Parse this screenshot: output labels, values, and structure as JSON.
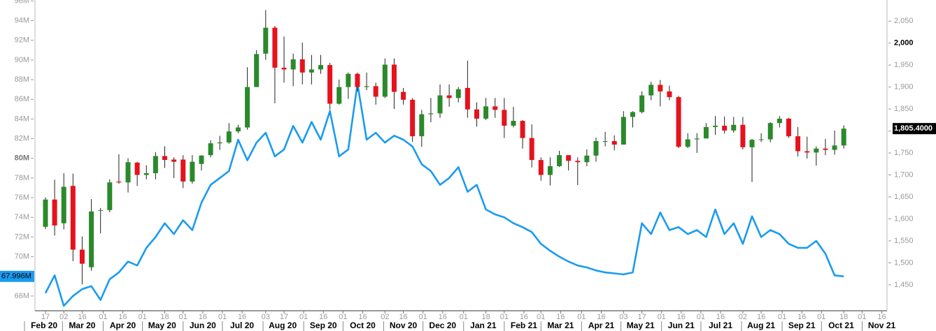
{
  "chart_data": {
    "type": "candlestick",
    "x": [
      "2020-02-17",
      "2020-02-24",
      "2020-03-02",
      "2020-03-09",
      "2020-03-16",
      "2020-03-23",
      "2020-03-30",
      "2020-04-06",
      "2020-04-13",
      "2020-04-20",
      "2020-04-27",
      "2020-05-04",
      "2020-05-11",
      "2020-05-18",
      "2020-05-25",
      "2020-06-01",
      "2020-06-08",
      "2020-06-15",
      "2020-06-22",
      "2020-06-29",
      "2020-07-06",
      "2020-07-13",
      "2020-07-20",
      "2020-07-27",
      "2020-08-03",
      "2020-08-10",
      "2020-08-17",
      "2020-08-24",
      "2020-08-31",
      "2020-09-07",
      "2020-09-14",
      "2020-09-21",
      "2020-09-28",
      "2020-10-05",
      "2020-10-12",
      "2020-10-19",
      "2020-10-26",
      "2020-11-02",
      "2020-11-09",
      "2020-11-16",
      "2020-11-23",
      "2020-11-30",
      "2020-12-07",
      "2020-12-14",
      "2020-12-21",
      "2020-12-28",
      "2021-01-04",
      "2021-01-11",
      "2021-01-18",
      "2021-01-25",
      "2021-02-01",
      "2021-02-08",
      "2021-02-15",
      "2021-02-22",
      "2021-03-01",
      "2021-03-08",
      "2021-03-15",
      "2021-03-22",
      "2021-03-29",
      "2021-04-05",
      "2021-04-12",
      "2021-04-19",
      "2021-04-26",
      "2021-05-03",
      "2021-05-10",
      "2021-05-17",
      "2021-05-24",
      "2021-05-31",
      "2021-06-07",
      "2021-06-14",
      "2021-06-21",
      "2021-06-28",
      "2021-07-05",
      "2021-07-12",
      "2021-07-19",
      "2021-07-26",
      "2021-08-02",
      "2021-08-09",
      "2021-08-16",
      "2021-08-23",
      "2021-08-30",
      "2021-09-06",
      "2021-09-13",
      "2021-09-20",
      "2021-09-27",
      "2021-10-04",
      "2021-10-11",
      "2021-10-18"
    ],
    "xlim": [
      "2020-02-09",
      "2021-11-20"
    ],
    "xticks": [
      {
        "value": "2020-02-17",
        "label": "17"
      },
      {
        "value": "2020-03-02",
        "label": "02"
      },
      {
        "value": "2020-03-16",
        "label": "16"
      },
      {
        "value": "2020-04-01",
        "label": "01"
      },
      {
        "value": "2020-04-16",
        "label": "16"
      },
      {
        "value": "2020-05-01",
        "label": "01"
      },
      {
        "value": "2020-05-18",
        "label": "18"
      },
      {
        "value": "2020-06-01",
        "label": "01"
      },
      {
        "value": "2020-06-16",
        "label": "16"
      },
      {
        "value": "2020-07-01",
        "label": "01"
      },
      {
        "value": "2020-07-16",
        "label": "16"
      },
      {
        "value": "2020-08-03",
        "label": "03"
      },
      {
        "value": "2020-08-17",
        "label": "17"
      },
      {
        "value": "2020-09-01",
        "label": "01"
      },
      {
        "value": "2020-09-16",
        "label": "16"
      },
      {
        "value": "2020-10-01",
        "label": "01"
      },
      {
        "value": "2020-10-16",
        "label": "16"
      },
      {
        "value": "2020-11-02",
        "label": "02"
      },
      {
        "value": "2020-11-16",
        "label": "16"
      },
      {
        "value": "2020-12-01",
        "label": "01"
      },
      {
        "value": "2020-12-16",
        "label": "16"
      },
      {
        "value": "2021-01-01",
        "label": "01"
      },
      {
        "value": "2021-01-18",
        "label": "18"
      },
      {
        "value": "2021-02-01",
        "label": "01"
      },
      {
        "value": "2021-02-16",
        "label": "16"
      },
      {
        "value": "2021-03-01",
        "label": "01"
      },
      {
        "value": "2021-03-16",
        "label": "16"
      },
      {
        "value": "2021-04-01",
        "label": "01"
      },
      {
        "value": "2021-04-16",
        "label": "16"
      },
      {
        "value": "2021-05-03",
        "label": "03"
      },
      {
        "value": "2021-05-17",
        "label": "17"
      },
      {
        "value": "2021-06-01",
        "label": "01"
      },
      {
        "value": "2021-06-16",
        "label": "16"
      },
      {
        "value": "2021-07-01",
        "label": "01"
      },
      {
        "value": "2021-07-16",
        "label": "16"
      },
      {
        "value": "2021-08-02",
        "label": "02"
      },
      {
        "value": "2021-08-16",
        "label": "16"
      },
      {
        "value": "2021-09-01",
        "label": "01"
      },
      {
        "value": "2021-09-16",
        "label": "16"
      },
      {
        "value": "2021-10-01",
        "label": "01"
      },
      {
        "value": "2021-10-18",
        "label": "18"
      },
      {
        "value": "2021-11-01",
        "label": "01"
      },
      {
        "value": "2021-11-16",
        "label": "16"
      }
    ],
    "month_labels": [
      {
        "value": "2020-02",
        "label": "Feb 20"
      },
      {
        "value": "2020-03",
        "label": "Mar 20"
      },
      {
        "value": "2020-04",
        "label": "Apr 20"
      },
      {
        "value": "2020-05",
        "label": "May 20"
      },
      {
        "value": "2020-06",
        "label": "Jun 20"
      },
      {
        "value": "2020-07",
        "label": "Jul 20"
      },
      {
        "value": "2020-08",
        "label": "Aug 20"
      },
      {
        "value": "2020-09",
        "label": "Sep 20"
      },
      {
        "value": "2020-10",
        "label": "Oct 20"
      },
      {
        "value": "2020-11",
        "label": "Nov 20"
      },
      {
        "value": "2020-12",
        "label": "Dec 20"
      },
      {
        "value": "2021-01",
        "label": "Jan 21"
      },
      {
        "value": "2021-02",
        "label": "Feb 21"
      },
      {
        "value": "2021-03",
        "label": "Mar 21"
      },
      {
        "value": "2021-04",
        "label": "Apr 21"
      },
      {
        "value": "2021-05",
        "label": "May 21"
      },
      {
        "value": "2021-06",
        "label": "Jun 21"
      },
      {
        "value": "2021-07",
        "label": "Jul 21"
      },
      {
        "value": "2021-08",
        "label": "Aug 21"
      },
      {
        "value": "2021-09",
        "label": "Sep 21"
      },
      {
        "value": "2021-10",
        "label": "Oct 21"
      },
      {
        "value": "2021-11",
        "label": "Nov 21"
      }
    ],
    "ylim": [
      64.5,
      96.1
    ],
    "yticks": [
      {
        "value": 66,
        "label": "66M"
      },
      {
        "value": 68,
        "label": "68M"
      },
      {
        "value": 70,
        "label": "70M"
      },
      {
        "value": 72,
        "label": "72M"
      },
      {
        "value": 74,
        "label": "74M"
      },
      {
        "value": 76,
        "label": "76M"
      },
      {
        "value": 78,
        "label": "78M"
      },
      {
        "value": 80,
        "label": "80M",
        "highlight": true
      },
      {
        "value": 82,
        "label": "82M"
      },
      {
        "value": 84,
        "label": "84M"
      },
      {
        "value": 86,
        "label": "86M"
      },
      {
        "value": 88,
        "label": "88M"
      },
      {
        "value": 90,
        "label": "90M"
      },
      {
        "value": 92,
        "label": "92M"
      },
      {
        "value": 94,
        "label": "94M"
      },
      {
        "value": 96,
        "label": "96M"
      }
    ],
    "y2lim": [
      1391,
      2098
    ],
    "y2ticks": [
      {
        "value": 1450,
        "label": "1,450"
      },
      {
        "value": 1500,
        "label": "1,500"
      },
      {
        "value": 1550,
        "label": "1,550"
      },
      {
        "value": 1600,
        "label": "1,600"
      },
      {
        "value": 1650,
        "label": "1,650"
      },
      {
        "value": 1700,
        "label": "1,700"
      },
      {
        "value": 1750,
        "label": "1,750"
      },
      {
        "value": 1800,
        "label": "1,800"
      },
      {
        "value": 1850,
        "label": "1,850"
      },
      {
        "value": 1900,
        "label": "1,900"
      },
      {
        "value": 1950,
        "label": "1,950"
      },
      {
        "value": 2000,
        "label": "2,000",
        "highlight": true
      },
      {
        "value": 2050,
        "label": "2,050"
      }
    ],
    "series": [
      {
        "type": "line",
        "axis": "y",
        "color": "#1a9bf0",
        "last_value_label": "67.996M",
        "values": [
          66.3,
          68.1,
          65.0,
          66.0,
          66.7,
          67.0,
          65.6,
          67.7,
          68.4,
          69.5,
          69.1,
          70.9,
          72.0,
          73.4,
          72.3,
          73.7,
          72.7,
          75.5,
          77.3,
          78.0,
          78.7,
          81.9,
          79.8,
          81.6,
          82.6,
          80.2,
          80.9,
          83.3,
          81.6,
          83.7,
          81.9,
          84.8,
          80.2,
          80.9,
          87.6,
          81.9,
          82.6,
          81.6,
          82.3,
          81.9,
          81.2,
          79.4,
          78.7,
          77.3,
          78.0,
          79.1,
          76.6,
          77.3,
          74.8,
          74.3,
          74.0,
          73.4,
          73.0,
          72.5,
          71.3,
          70.6,
          70.0,
          69.5,
          69.1,
          68.9,
          68.6,
          68.4,
          68.3,
          68.2,
          68.4,
          73.4,
          72.3,
          74.5,
          72.7,
          73.0,
          72.3,
          72.7,
          72.0,
          74.8,
          72.3,
          73.4,
          71.3,
          74.1,
          72.0,
          72.7,
          72.3,
          71.3,
          70.9,
          70.9,
          71.6,
          70.3,
          68.1,
          67.996
        ]
      },
      {
        "type": "candlestick",
        "axis": "y2",
        "up_color": "#2a8a2a",
        "down_color": "#e6121c",
        "last_value_label": "1,805.4000",
        "open": [
          1582,
          1644,
          1590,
          1675,
          1530,
          1490,
          1620,
          1620,
          1685,
          1683,
          1728,
          1700,
          1704,
          1743,
          1735,
          1735,
          1685,
          1725,
          1745,
          1772,
          1774,
          1799,
          1808,
          1900,
          1976,
          2035,
          1944,
          1940,
          1963,
          1933,
          1940,
          1950,
          1862,
          1900,
          1930,
          1900,
          1902,
          1878,
          1951,
          1889,
          1871,
          1788,
          1838,
          1840,
          1881,
          1875,
          1898,
          1849,
          1828,
          1856,
          1848,
          1812,
          1823,
          1784,
          1734,
          1700,
          1720,
          1745,
          1732,
          1729,
          1744,
          1777,
          1777,
          1769,
          1832,
          1843,
          1881,
          1905,
          1890,
          1877,
          1764,
          1781,
          1783,
          1809,
          1812,
          1801,
          1814,
          1763,
          1780,
          1781,
          1818,
          1828,
          1788,
          1754,
          1751,
          1760,
          1757,
          1767
        ],
        "high": [
          1649,
          1689,
          1704,
          1703,
          1560,
          1645,
          1625,
          1690,
          1747,
          1738,
          1730,
          1722,
          1752,
          1765,
          1740,
          1745,
          1745,
          1745,
          1779,
          1789,
          1818,
          1814,
          1945,
          1984,
          2075,
          2039,
          2015,
          1976,
          2001,
          1973,
          1973,
          1955,
          1917,
          1933,
          1933,
          1933,
          1910,
          1965,
          1965,
          1898,
          1875,
          1848,
          1875,
          1906,
          1906,
          1900,
          1960,
          1865,
          1875,
          1875,
          1875,
          1855,
          1825,
          1815,
          1740,
          1740,
          1755,
          1745,
          1740,
          1758,
          1785,
          1798,
          1790,
          1845,
          1845,
          1890,
          1912,
          1916,
          1903,
          1880,
          1795,
          1795,
          1818,
          1834,
          1833,
          1832,
          1832,
          1782,
          1795,
          1820,
          1834,
          1830,
          1809,
          1787,
          1765,
          1782,
          1801,
          1813
        ],
        "low": [
          1577,
          1562,
          1576,
          1504,
          1451,
          1482,
          1567,
          1615,
          1680,
          1660,
          1675,
          1690,
          1690,
          1716,
          1693,
          1670,
          1680,
          1710,
          1740,
          1757,
          1771,
          1795,
          1803,
          1900,
          1962,
          1863,
          1910,
          1902,
          1906,
          1906,
          1930,
          1848,
          1860,
          1873,
          1890,
          1893,
          1860,
          1875,
          1850,
          1860,
          1775,
          1764,
          1820,
          1830,
          1855,
          1865,
          1830,
          1810,
          1825,
          1830,
          1784,
          1808,
          1760,
          1717,
          1687,
          1676,
          1718,
          1710,
          1677,
          1720,
          1730,
          1765,
          1756,
          1769,
          1808,
          1840,
          1870,
          1856,
          1870,
          1761,
          1761,
          1750,
          1783,
          1791,
          1794,
          1796,
          1758,
          1684,
          1775,
          1774,
          1808,
          1784,
          1742,
          1737,
          1721,
          1745,
          1746,
          1760
        ],
        "close": [
          1644,
          1585,
          1673,
          1530,
          1498,
          1617,
          1620,
          1683,
          1683,
          1729,
          1700,
          1704,
          1743,
          1734,
          1730,
          1685,
          1730,
          1744,
          1772,
          1774,
          1799,
          1808,
          1900,
          1975,
          2035,
          1944,
          1940,
          1963,
          1933,
          1940,
          1950,
          1862,
          1900,
          1930,
          1900,
          1902,
          1878,
          1951,
          1889,
          1871,
          1788,
          1838,
          1840,
          1881,
          1875,
          1895,
          1849,
          1828,
          1856,
          1848,
          1812,
          1823,
          1784,
          1734,
          1700,
          1720,
          1745,
          1732,
          1729,
          1744,
          1777,
          1777,
          1769,
          1832,
          1843,
          1881,
          1905,
          1890,
          1877,
          1764,
          1781,
          1783,
          1809,
          1812,
          1801,
          1814,
          1763,
          1780,
          1781,
          1818,
          1828,
          1788,
          1754,
          1751,
          1760,
          1757,
          1767,
          1805.4
        ]
      }
    ]
  }
}
